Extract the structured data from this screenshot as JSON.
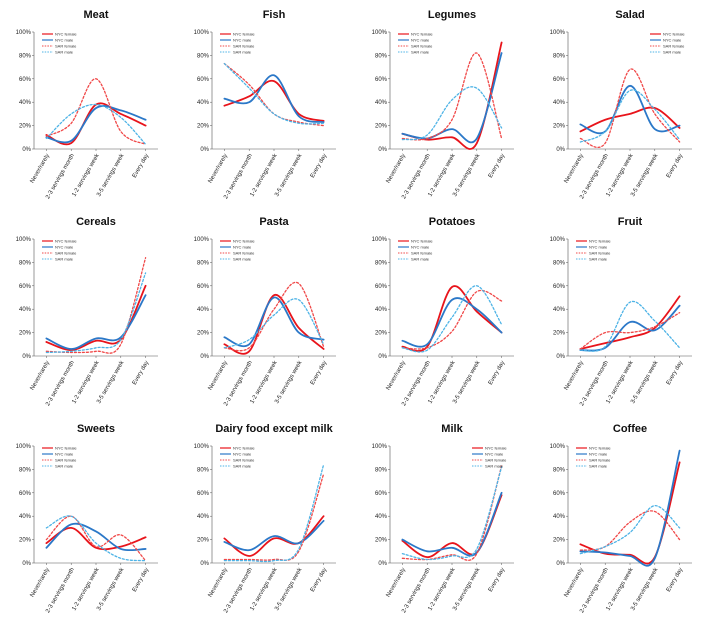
{
  "colors": {
    "nyc_female": "#e8141b",
    "nyc_male": "#2b78c8",
    "sar_female": "#f04848",
    "sar_male": "#4db3e6",
    "axis": "#555555"
  },
  "chart_data": [
    {
      "type": "line",
      "title": "Meat",
      "categories": [
        "Never/rarely",
        "2-3 servings month",
        "1-2 servings week",
        "3-5 servings week",
        "Every day"
      ],
      "ylim": [
        0,
        100
      ],
      "yticks": [
        "0%",
        "20%",
        "40%",
        "60%",
        "80%",
        "100%"
      ],
      "legend": "top-left",
      "series": [
        {
          "name": "NYC female",
          "values": [
            12,
            5,
            38,
            30,
            20
          ]
        },
        {
          "name": "NYC male",
          "values": [
            10,
            7,
            35,
            33,
            25
          ]
        },
        {
          "name": "SAR female",
          "values": [
            11,
            22,
            60,
            15,
            4
          ]
        },
        {
          "name": "SAR male",
          "values": [
            9,
            30,
            38,
            27,
            4
          ]
        }
      ]
    },
    {
      "type": "line",
      "title": "Fish",
      "categories": [
        "Never/rarely",
        "2-3 servings month",
        "1-2 servings week",
        "3-5 servings week",
        "Every day"
      ],
      "ylim": [
        0,
        100
      ],
      "yticks": [
        "0%",
        "20%",
        "40%",
        "60%",
        "80%",
        "100%"
      ],
      "legend": "top-left",
      "series": [
        {
          "name": "NYC female",
          "values": [
            37,
            45,
            58,
            30,
            24
          ]
        },
        {
          "name": "NYC male",
          "values": [
            43,
            40,
            63,
            28,
            23
          ]
        },
        {
          "name": "SAR female",
          "values": [
            73,
            55,
            30,
            23,
            20
          ]
        },
        {
          "name": "SAR male",
          "values": [
            73,
            52,
            30,
            22,
            22
          ]
        }
      ]
    },
    {
      "type": "line",
      "title": "Legumes",
      "categories": [
        "Never/rarely",
        "2-3 servings month",
        "1-2 servings week",
        "3-5 servings week",
        "Every day"
      ],
      "ylim": [
        0,
        100
      ],
      "yticks": [
        "0%",
        "20%",
        "40%",
        "60%",
        "80%",
        "100%"
      ],
      "legend": "top-left",
      "series": [
        {
          "name": "NYC female",
          "values": [
            13,
            8,
            10,
            5,
            91
          ]
        },
        {
          "name": "NYC male",
          "values": [
            13,
            9,
            17,
            9,
            82
          ]
        },
        {
          "name": "SAR female",
          "values": [
            9,
            9,
            25,
            82,
            9
          ]
        },
        {
          "name": "SAR male",
          "values": [
            8,
            12,
            42,
            52,
            18
          ]
        }
      ]
    },
    {
      "type": "line",
      "title": "Salad",
      "categories": [
        "Never/rarely",
        "2-3 servings month",
        "1-2 servings week",
        "3-5 servings week",
        "Every day"
      ],
      "ylim": [
        0,
        100
      ],
      "yticks": [
        "0%",
        "20%",
        "40%",
        "60%",
        "80%",
        "100%"
      ],
      "legend": "top-right",
      "series": [
        {
          "name": "NYC female",
          "values": [
            15,
            25,
            30,
            35,
            18
          ]
        },
        {
          "name": "NYC male",
          "values": [
            21,
            15,
            54,
            17,
            20
          ]
        },
        {
          "name": "SAR female",
          "values": [
            9,
            5,
            68,
            30,
            6
          ]
        },
        {
          "name": "SAR male",
          "values": [
            6,
            15,
            50,
            34,
            8
          ]
        }
      ]
    },
    {
      "type": "line",
      "title": "Cereals",
      "categories": [
        "Never/rarely",
        "2-3 servings month",
        "1-2 servings week",
        "3-5 servings week",
        "Every day"
      ],
      "ylim": [
        0,
        100
      ],
      "yticks": [
        "0%",
        "20%",
        "40%",
        "60%",
        "80%",
        "100%"
      ],
      "legend": "top-left",
      "series": [
        {
          "name": "NYC female",
          "values": [
            12,
            5,
            13,
            14,
            60
          ]
        },
        {
          "name": "NYC male",
          "values": [
            15,
            6,
            15,
            16,
            52
          ]
        },
        {
          "name": "SAR female",
          "values": [
            4,
            3,
            4,
            10,
            84
          ]
        },
        {
          "name": "SAR male",
          "values": [
            3,
            4,
            7,
            14,
            71
          ]
        }
      ]
    },
    {
      "type": "line",
      "title": "Pasta",
      "categories": [
        "Never/rarely",
        "2-3 servings month",
        "1-2 servings week",
        "3-5 servings week",
        "Every day"
      ],
      "ylim": [
        0,
        100
      ],
      "yticks": [
        "0%",
        "20%",
        "40%",
        "60%",
        "80%",
        "100%"
      ],
      "legend": "top-left",
      "series": [
        {
          "name": "NYC female",
          "values": [
            10,
            4,
            52,
            24,
            6
          ]
        },
        {
          "name": "NYC male",
          "values": [
            16,
            10,
            50,
            20,
            14
          ]
        },
        {
          "name": "SAR female",
          "values": [
            7,
            7,
            40,
            62,
            8
          ]
        },
        {
          "name": "SAR male",
          "values": [
            7,
            14,
            35,
            48,
            10
          ]
        }
      ]
    },
    {
      "type": "line",
      "title": "Potatoes",
      "categories": [
        "Never/rarely",
        "2-3 servings month",
        "1-2 servings week",
        "3-5 servings week",
        "Every day"
      ],
      "ylim": [
        0,
        100
      ],
      "yticks": [
        "0%",
        "20%",
        "40%",
        "60%",
        "80%",
        "100%"
      ],
      "legend": "top-left",
      "series": [
        {
          "name": "NYC female",
          "values": [
            8,
            8,
            59,
            38,
            20
          ]
        },
        {
          "name": "NYC male",
          "values": [
            13,
            10,
            48,
            40,
            20
          ]
        },
        {
          "name": "SAR female",
          "values": [
            7,
            7,
            21,
            55,
            47
          ]
        },
        {
          "name": "SAR male",
          "values": [
            7,
            5,
            33,
            60,
            27
          ]
        }
      ]
    },
    {
      "type": "line",
      "title": "Fruit",
      "categories": [
        "Never/rarely",
        "2-3 servings month",
        "1-2 servings week",
        "3-5 servings week",
        "Every day"
      ],
      "ylim": [
        0,
        100
      ],
      "yticks": [
        "0%",
        "20%",
        "40%",
        "60%",
        "80%",
        "100%"
      ],
      "legend": "top-left",
      "series": [
        {
          "name": "NYC female",
          "values": [
            6,
            11,
            16,
            24,
            51
          ]
        },
        {
          "name": "NYC male",
          "values": [
            5,
            7,
            29,
            22,
            43
          ]
        },
        {
          "name": "SAR female",
          "values": [
            6,
            20,
            20,
            25,
            37
          ]
        },
        {
          "name": "SAR male",
          "values": [
            5,
            8,
            46,
            30,
            7
          ]
        }
      ]
    },
    {
      "type": "line",
      "title": "Sweets",
      "categories": [
        "Never/rarely",
        "2-3 servings month",
        "1-2 servings week",
        "3-5 servings week",
        "Every day"
      ],
      "ylim": [
        0,
        100
      ],
      "yticks": [
        "0%",
        "20%",
        "40%",
        "60%",
        "80%",
        "100%"
      ],
      "legend": "top-left",
      "series": [
        {
          "name": "NYC female",
          "values": [
            17,
            30,
            13,
            14,
            22
          ]
        },
        {
          "name": "NYC male",
          "values": [
            13,
            33,
            27,
            12,
            12
          ]
        },
        {
          "name": "SAR female",
          "values": [
            20,
            40,
            14,
            24,
            2
          ]
        },
        {
          "name": "SAR male",
          "values": [
            30,
            40,
            17,
            4,
            2
          ]
        }
      ]
    },
    {
      "type": "line",
      "title": "Dairy food except milk",
      "categories": [
        "Never/rarely",
        "2-3 servings month",
        "1-2 servings week",
        "3-5 servings week",
        "Every day"
      ],
      "ylim": [
        0,
        100
      ],
      "yticks": [
        "0%",
        "20%",
        "40%",
        "60%",
        "80%",
        "100%"
      ],
      "legend": "top-left",
      "series": [
        {
          "name": "NYC female",
          "values": [
            21,
            6,
            21,
            17,
            40
          ]
        },
        {
          "name": "NYC male",
          "values": [
            18,
            11,
            23,
            17,
            36
          ]
        },
        {
          "name": "SAR female",
          "values": [
            3,
            3,
            3,
            10,
            76
          ]
        },
        {
          "name": "SAR male",
          "values": [
            2,
            2,
            2,
            12,
            84
          ]
        }
      ]
    },
    {
      "type": "line",
      "title": "Milk",
      "categories": [
        "Never/rarely",
        "2-3 servings month",
        "1-2 servings week",
        "3-5 servings week",
        "Every day"
      ],
      "ylim": [
        0,
        100
      ],
      "yticks": [
        "0%",
        "20%",
        "40%",
        "60%",
        "80%",
        "100%"
      ],
      "legend": "top-right",
      "series": [
        {
          "name": "NYC female",
          "values": [
            19,
            5,
            17,
            9,
            58
          ]
        },
        {
          "name": "NYC male",
          "values": [
            20,
            10,
            13,
            9,
            60
          ]
        },
        {
          "name": "SAR female",
          "values": [
            4,
            3,
            7,
            8,
            83
          ]
        },
        {
          "name": "SAR male",
          "values": [
            8,
            3,
            6,
            12,
            82
          ]
        }
      ]
    },
    {
      "type": "line",
      "title": "Coffee",
      "categories": [
        "Never/rarely",
        "2-3 servings month",
        "1-2 servings week",
        "3-5 servings week",
        "Every day"
      ],
      "ylim": [
        0,
        100
      ],
      "yticks": [
        "0%",
        "20%",
        "40%",
        "60%",
        "80%",
        "100%"
      ],
      "legend": "top-left",
      "series": [
        {
          "name": "NYC female",
          "values": [
            16,
            8,
            7,
            5,
            86
          ]
        },
        {
          "name": "NYC male",
          "values": [
            10,
            9,
            6,
            4,
            96
          ]
        },
        {
          "name": "SAR female",
          "values": [
            11,
            14,
            35,
            44,
            20
          ]
        },
        {
          "name": "SAR male",
          "values": [
            8,
            14,
            26,
            49,
            30
          ]
        }
      ]
    }
  ]
}
